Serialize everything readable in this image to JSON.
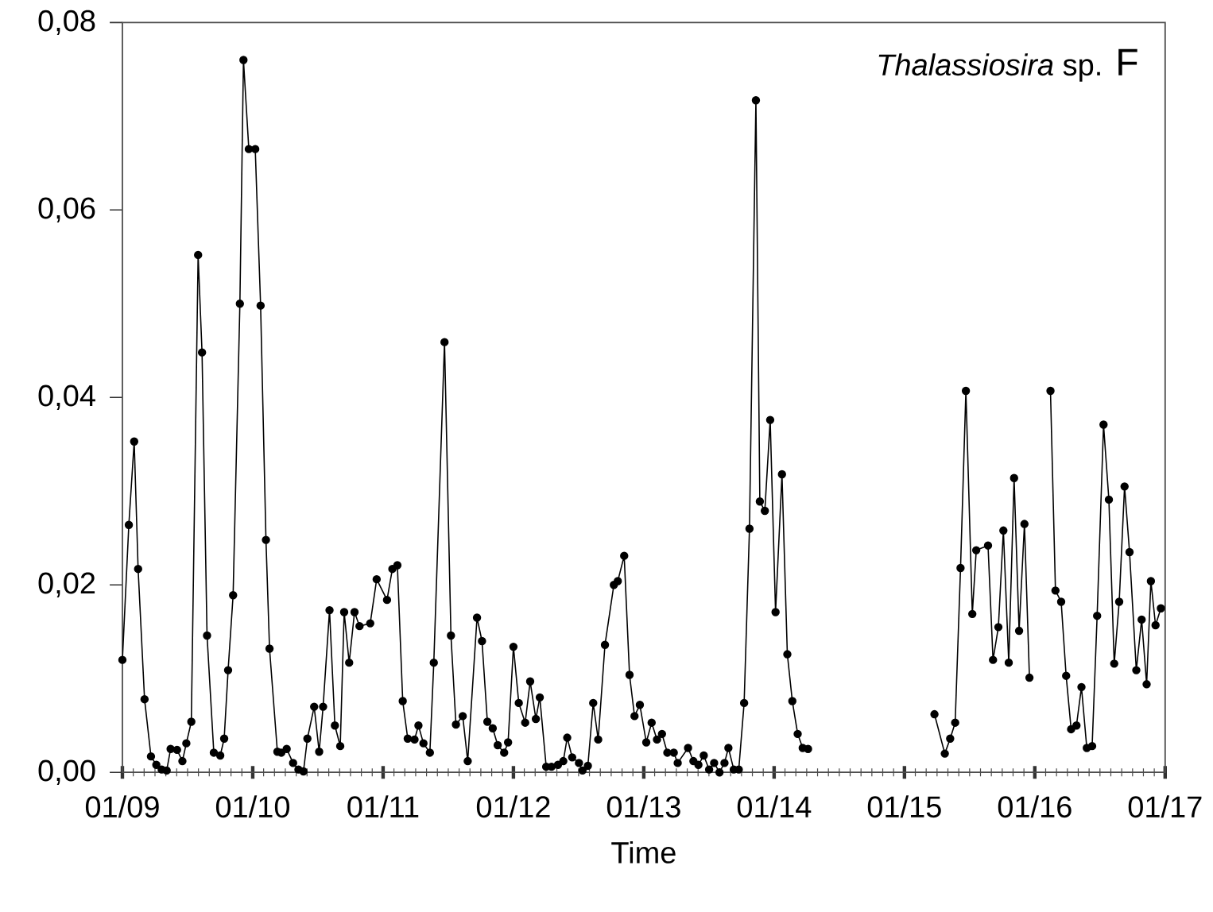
{
  "chart_data": {
    "type": "line",
    "title": "*Thalassiosira* sp.",
    "xlabel": "Time",
    "annotations": [
      "F"
    ],
    "x": [
      "2009-01-01",
      "2009-01-19",
      "2009-02-03",
      "2009-02-14",
      "2009-03-04",
      "2009-03-22",
      "2009-04-06",
      "2009-04-21",
      "2009-05-05",
      "2009-05-16",
      "2009-06-03",
      "2009-06-18",
      "2009-06-29",
      "2009-07-13",
      "2009-08-01",
      "2009-08-12",
      "2009-08-26",
      "2009-09-14",
      "2009-10-02",
      "2009-10-13",
      "2009-10-24",
      "2009-11-07",
      "2009-11-26",
      "2009-12-06",
      "2009-12-21",
      "2010-01-08",
      "2010-01-23",
      "2010-02-07",
      "2010-02-17",
      "2010-03-11",
      "2010-03-22",
      "2010-04-06",
      "2010-04-24",
      "2010-05-09",
      "2010-05-23",
      "2010-06-03",
      "2010-06-22",
      "2010-07-06",
      "2010-07-17",
      "2010-08-04",
      "2010-08-19",
      "2010-09-03",
      "2010-09-14",
      "2010-09-28",
      "2010-10-13",
      "2010-10-27",
      "2010-11-26",
      "2010-12-14",
      "2011-01-12",
      "2011-01-27",
      "2011-02-10",
      "2011-02-25",
      "2011-03-11",
      "2011-03-30",
      "2011-04-10",
      "2011-04-24",
      "2011-05-12",
      "2011-05-23",
      "2011-06-22",
      "2011-07-10",
      "2011-07-24",
      "2011-08-12",
      "2011-08-26",
      "2011-09-21",
      "2011-10-05",
      "2011-10-20",
      "2011-11-04",
      "2011-11-18",
      "2011-12-06",
      "2011-12-17",
      "2012-01-01",
      "2012-01-16",
      "2012-02-03",
      "2012-02-17",
      "2012-03-04",
      "2012-03-15",
      "2012-04-02",
      "2012-04-17",
      "2012-05-05",
      "2012-05-20",
      "2012-05-31",
      "2012-06-14",
      "2012-07-03",
      "2012-07-13",
      "2012-07-28",
      "2012-08-12",
      "2012-08-26",
      "2012-09-14",
      "2012-10-09",
      "2012-10-20",
      "2012-11-07",
      "2012-11-22",
      "2012-12-06",
      "2012-12-21",
      "2013-01-08",
      "2013-01-23",
      "2013-02-07",
      "2013-02-21",
      "2013-03-08",
      "2013-03-26",
      "2013-04-06",
      "2013-05-05",
      "2013-05-20",
      "2013-06-03",
      "2013-06-18",
      "2013-07-03",
      "2013-07-17",
      "2013-08-01",
      "2013-08-15",
      "2013-08-26",
      "2013-09-10",
      "2013-09-24",
      "2013-10-09",
      "2013-10-24",
      "2013-11-11",
      "2013-11-22",
      "2013-12-06",
      "2013-12-21",
      "2014-01-05",
      "2014-01-23",
      "2014-02-07",
      "2014-02-21",
      "2014-03-08",
      "2014-03-22",
      "2014-04-06",
      "2014-09-14",
      "2015-03-26",
      "2015-04-24",
      "2015-05-09",
      "2015-05-23",
      "2015-06-07",
      "2015-06-22",
      "2015-07-10",
      "2015-07-21",
      "2015-08-23",
      "2015-09-06",
      "2015-09-21",
      "2015-10-05",
      "2015-10-20",
      "2015-11-04",
      "2015-11-18",
      "2015-12-03",
      "2015-12-17",
      "2016-01-16",
      "2016-02-14",
      "2016-02-28",
      "2016-03-15",
      "2016-03-29",
      "2016-04-12",
      "2016-04-27",
      "2016-05-11",
      "2016-05-26",
      "2016-06-10",
      "2016-06-24",
      "2016-07-12",
      "2016-07-27",
      "2016-08-11",
      "2016-08-25",
      "2016-09-09",
      "2016-09-23",
      "2016-10-12",
      "2016-10-27",
      "2016-11-10",
      "2016-11-22",
      "2016-12-05",
      "2016-12-20"
    ],
    "series": [
      {
        "color": "#000000",
        "values": [
          0.012,
          0.0264,
          0.0353,
          0.0217,
          0.0078,
          0.0017,
          0.0008,
          0.0003,
          0.0002,
          0.0025,
          0.0024,
          0.0012,
          0.0031,
          0.0054,
          0.0552,
          0.0448,
          0.0146,
          0.0021,
          0.0018,
          0.0036,
          0.0109,
          0.0189,
          0.05,
          0.076,
          0.0665,
          0.0665,
          0.0498,
          0.0248,
          0.0132,
          0.0022,
          0.0021,
          0.0025,
          0.001,
          0.0003,
          0.0001,
          0.0036,
          0.007,
          0.0022,
          0.007,
          0.0173,
          0.005,
          0.0028,
          0.0171,
          0.0117,
          0.0171,
          0.0156,
          0.0159,
          0.0206,
          0.0184,
          0.0217,
          0.0221,
          0.0076,
          0.0036,
          0.0035,
          0.005,
          0.0031,
          0.0021,
          0.0117,
          0.0459,
          0.0146,
          0.0051,
          0.006,
          0.0012,
          0.0165,
          0.014,
          0.0054,
          0.0047,
          0.0029,
          0.0021,
          0.0032,
          0.0134,
          0.0074,
          0.0053,
          0.0097,
          0.0057,
          0.008,
          0.0006,
          0.0006,
          0.0008,
          0.0012,
          0.0037,
          0.0016,
          0.001,
          0.0002,
          0.0007,
          0.0074,
          0.0035,
          0.0136,
          0.02,
          0.0204,
          0.0231,
          0.0104,
          0.006,
          0.0072,
          0.0032,
          0.0053,
          0.0035,
          0.0041,
          0.0021,
          0.0021,
          0.001,
          0.0026,
          0.0012,
          0.0008,
          0.0018,
          0.0003,
          0.001,
          0.0,
          0.001,
          0.0026,
          0.0003,
          0.0003,
          0.0074,
          0.026,
          0.0717,
          0.0289,
          0.0279,
          0.0376,
          0.0171,
          0.0318,
          0.0126,
          0.0076,
          0.0041,
          0.0026,
          0.0025,
          null,
          0.0062,
          0.002,
          0.0036,
          0.0053,
          0.0218,
          0.0407,
          0.0169,
          0.0237,
          0.0242,
          0.012,
          0.0155,
          0.0258,
          0.0117,
          0.0314,
          0.0151,
          0.0265,
          0.0101,
          null,
          0.0407,
          0.0194,
          0.0182,
          0.0103,
          0.0046,
          0.005,
          0.0091,
          0.0026,
          0.0028,
          0.0167,
          0.0371,
          0.0291,
          0.0116,
          0.0182,
          0.0305,
          0.0235,
          0.0109,
          0.0163,
          0.0094,
          0.0204,
          0.0157,
          0.0175
        ]
      }
    ],
    "xlim": [
      "2009-01-01",
      "2017-01-01"
    ],
    "ylim": [
      0,
      0.08
    ],
    "xticks": [
      {
        "value": "2009-01-01",
        "label": "01/09"
      },
      {
        "value": "2010-01-01",
        "label": "01/10"
      },
      {
        "value": "2011-01-01",
        "label": "01/11"
      },
      {
        "value": "2012-01-01",
        "label": "01/12"
      },
      {
        "value": "2013-01-01",
        "label": "01/13"
      },
      {
        "value": "2014-01-01",
        "label": "01/14"
      },
      {
        "value": "2015-01-01",
        "label": "01/15"
      },
      {
        "value": "2016-01-01",
        "label": "01/16"
      },
      {
        "value": "2017-01-01",
        "label": "01/17"
      }
    ],
    "yticks": [
      {
        "value": 0,
        "label": "0,00"
      },
      {
        "value": 0.02,
        "label": "0,02"
      },
      {
        "value": 0.04,
        "label": "0,04"
      },
      {
        "value": 0.06,
        "label": "0,06"
      },
      {
        "value": 0.08,
        "label": "0,08"
      }
    ],
    "grid": false,
    "marker": "circle",
    "line_style": "solid"
  }
}
